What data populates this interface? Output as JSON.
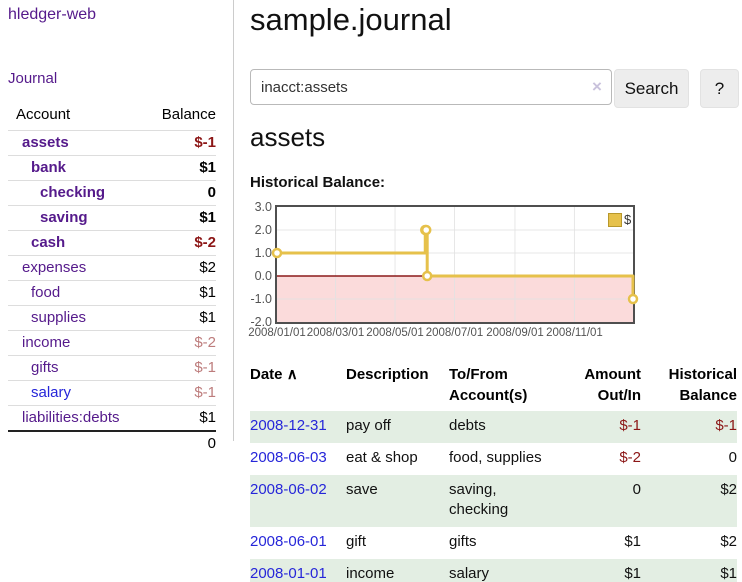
{
  "sidebar": {
    "brand": "hledger-web",
    "journal_label": "Journal",
    "accounts_table": {
      "headers": {
        "account": "Account",
        "balance": "Balance"
      },
      "rows": [
        {
          "name": "assets",
          "balance": "$-1",
          "depth": 1,
          "bold": true,
          "neg": "strong"
        },
        {
          "name": "bank",
          "balance": "$1",
          "depth": 2,
          "bold": true,
          "neg": "none"
        },
        {
          "name": "checking",
          "balance": "0",
          "depth": 3,
          "bold": true,
          "neg": "none"
        },
        {
          "name": "saving",
          "balance": "$1",
          "depth": 3,
          "bold": true,
          "neg": "none"
        },
        {
          "name": "cash",
          "balance": "$-2",
          "depth": 2,
          "bold": true,
          "neg": "strong"
        },
        {
          "name": "expenses",
          "balance": "$2",
          "depth": 1,
          "bold": false,
          "neg": "none"
        },
        {
          "name": "food",
          "balance": "$1",
          "depth": 2,
          "bold": false,
          "neg": "none"
        },
        {
          "name": "supplies",
          "balance": "$1",
          "depth": 2,
          "bold": false,
          "neg": "none"
        },
        {
          "name": "income",
          "balance": "$-2",
          "depth": 1,
          "bold": false,
          "neg": "soft"
        },
        {
          "name": "gifts",
          "balance": "$-1",
          "depth": 2,
          "bold": false,
          "neg": "soft"
        },
        {
          "name": "salary",
          "balance": "$-1",
          "depth": 2,
          "bold": false,
          "neg": "soft",
          "link": "blue"
        },
        {
          "name": "liabilities:debts",
          "balance": "$1",
          "depth": 1,
          "bold": false,
          "neg": "none"
        }
      ],
      "total": "0"
    }
  },
  "header": {
    "title": "sample.journal"
  },
  "search": {
    "value": "inacct:assets",
    "clear_icon": "×",
    "button_label": "Search",
    "help_label": "?"
  },
  "main": {
    "account_heading": "assets",
    "chart_label": "Historical Balance:"
  },
  "chart_data": {
    "type": "line",
    "step": true,
    "title": "Historical Balance:",
    "x_range": [
      "2008-01-01",
      "2008-12-31"
    ],
    "x_tick_dates": [
      "2008-01-01",
      "2008-03-01",
      "2008-05-01",
      "2008-07-01",
      "2008-09-01",
      "2008-11-01"
    ],
    "x_tick_labels": [
      "2008/01/01",
      "2008/03/01",
      "2008/05/01",
      "2008/07/01",
      "2008/09/01",
      "2008/11/01"
    ],
    "y_ticks": [
      3,
      2,
      1,
      0,
      -1,
      -2
    ],
    "y_tick_labels": [
      "3.0",
      "2.0",
      "1.0",
      "0.0",
      "-1.0",
      "-2.0"
    ],
    "ylim": [
      -2,
      3
    ],
    "grid": true,
    "legend_position": "top-right",
    "series": [
      {
        "name": "$",
        "color": "#e6c14b",
        "points": [
          [
            "2008-01-01",
            1
          ],
          [
            "2008-06-01",
            2
          ],
          [
            "2008-06-02",
            2
          ],
          [
            "2008-06-03",
            0
          ],
          [
            "2008-12-31",
            -1
          ]
        ]
      }
    ],
    "negative_region_color": "#fbdbdb",
    "zero_line_color": "#8b1a1a",
    "grid_color": "#e3e3e3",
    "border_color": "#4f4f4f"
  },
  "register_table": {
    "sort_indicator": "∧",
    "columns": [
      {
        "label": "Date",
        "align": "left"
      },
      {
        "label": "Description",
        "align": "left"
      },
      {
        "label": "To/From\nAccount(s)",
        "align": "left"
      },
      {
        "label": "Amount\nOut/In",
        "align": "right"
      },
      {
        "label": "Historical\nBalance",
        "align": "right"
      }
    ],
    "rows": [
      {
        "date": "2008-12-31",
        "description": "pay off",
        "accounts": [
          "debts"
        ],
        "amount": "$-1",
        "amount_neg": true,
        "balance": "$-1",
        "balance_neg": true
      },
      {
        "date": "2008-06-03",
        "description": "eat & shop",
        "accounts": [
          "food, supplies"
        ],
        "amount": "$-2",
        "amount_neg": true,
        "balance": "0",
        "balance_neg": false
      },
      {
        "date": "2008-06-02",
        "description": "save",
        "accounts": [
          "saving,",
          "checking"
        ],
        "amount": "0",
        "amount_neg": false,
        "balance": "$2",
        "balance_neg": false
      },
      {
        "date": "2008-06-01",
        "description": "gift",
        "accounts": [
          "gifts"
        ],
        "amount": "$1",
        "amount_neg": false,
        "balance": "$2",
        "balance_neg": false
      },
      {
        "date": "2008-01-01",
        "description": "income",
        "accounts": [
          "salary"
        ],
        "amount": "$1",
        "amount_neg": false,
        "balance": "$1",
        "balance_neg": false
      }
    ]
  },
  "colors": {
    "link_purple": "#551a8b",
    "link_blue": "#2626d9",
    "negative_strong": "#8c1616",
    "negative_soft": "#bd7c7c",
    "row_stripe_green": "#e3eee3",
    "chart_line_gold": "#e6c14b"
  }
}
